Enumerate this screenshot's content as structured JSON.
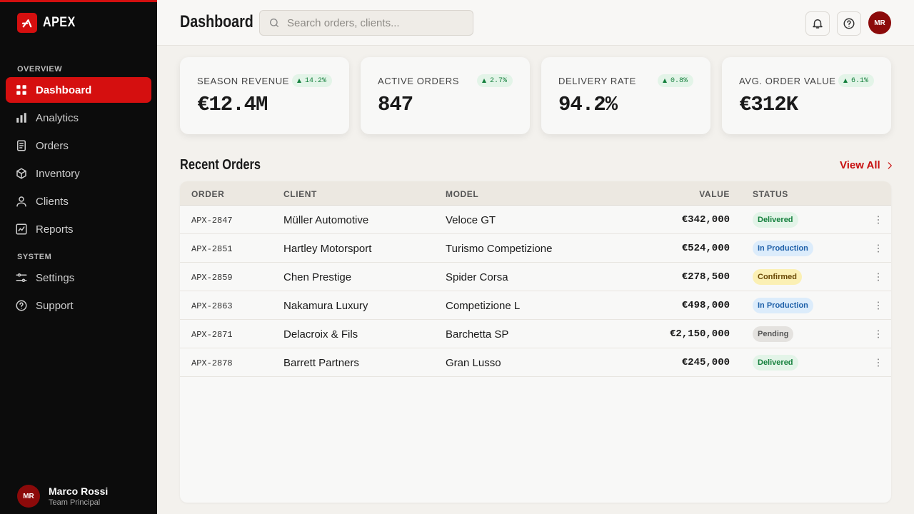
{
  "sidebar": {
    "brand": "APEX",
    "sections": [
      {
        "title": "OVERVIEW",
        "items": [
          "Dashboard",
          "Analytics",
          "Orders",
          "Inventory",
          "Clients",
          "Reports"
        ]
      },
      {
        "title": "SYSTEM",
        "items": [
          "Settings",
          "Support"
        ]
      }
    ],
    "user": {
      "initials": "MR",
      "name": "Marco Rossi",
      "role": "Team Principal"
    }
  },
  "header": {
    "title": "Dashboard",
    "search_placeholder": "Search orders, clients...",
    "avatar": "MR"
  },
  "kpis": [
    {
      "label": "SEASON REVENUE",
      "value": "€12.4M",
      "change": "14.2%"
    },
    {
      "label": "ACTIVE ORDERS",
      "value": "847",
      "change": "2.7%"
    },
    {
      "label": "DELIVERY RATE",
      "value": "94.2%",
      "change": "0.8%"
    },
    {
      "label": "AVG. ORDER VALUE",
      "value": "€312K",
      "change": "6.1%"
    }
  ],
  "orders": {
    "title": "Recent Orders",
    "link": "View All",
    "columns": [
      "ORDER",
      "CLIENT",
      "MODEL",
      "VALUE",
      "STATUS"
    ],
    "rows": [
      {
        "order": "APX-2847",
        "client": "Müller Automotive",
        "model": "Veloce GT",
        "value": "€342,000",
        "status": "Delivered",
        "status_color": "#15803d",
        "status_bg": "#e3f4e8"
      },
      {
        "order": "APX-2851",
        "client": "Hartley Motorsport",
        "model": "Turismo Competizione",
        "value": "€524,000",
        "status": "In Production",
        "status_color": "#1d5fa8",
        "status_bg": "#dcecfb"
      },
      {
        "order": "APX-2859",
        "client": "Chen Prestige",
        "model": "Spider Corsa",
        "value": "€278,500",
        "status": "Confirmed",
        "status_color": "#6b4a06",
        "status_bg": "#fbf0b4"
      },
      {
        "order": "APX-2863",
        "client": "Nakamura Luxury",
        "model": "Competizione L",
        "value": "€498,000",
        "status": "In Production",
        "status_color": "#1d5fa8",
        "status_bg": "#dcecfb"
      },
      {
        "order": "APX-2871",
        "client": "Delacroix & Fils",
        "model": "Barchetta SP",
        "value": "€2,150,000",
        "status": "Pending",
        "status_color": "#555555",
        "status_bg": "#e4e2df"
      },
      {
        "order": "APX-2878",
        "client": "Barrett Partners",
        "model": "Gran Lusso",
        "value": "€245,000",
        "status": "Delivered",
        "status_color": "#15803d",
        "status_bg": "#e3f4e8"
      }
    ]
  }
}
